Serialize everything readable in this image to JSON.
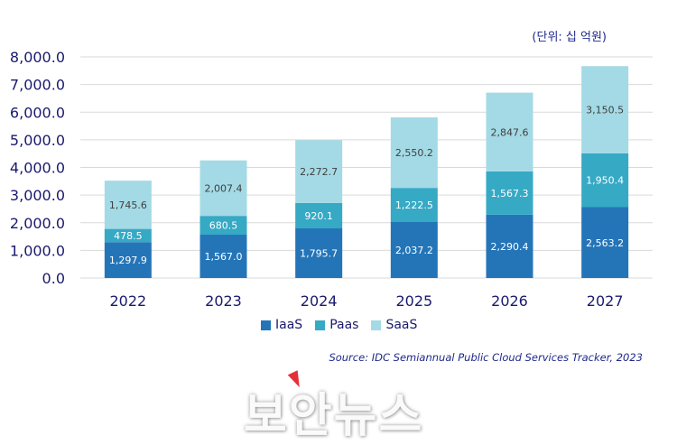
{
  "unit_label": "(단위: 십 억원)",
  "source": "Source: IDC Semiannual Public Cloud Services Tracker, 2023",
  "watermark": "보안뉴스",
  "colors": {
    "IaaS": "#2475b8",
    "PaaS": "#36a9c5",
    "SaaS": "#a3dae5",
    "axis_text": "#1a1a6e",
    "grid": "#d9d9d9"
  },
  "chart_data": {
    "type": "bar",
    "stacked": true,
    "title": "",
    "xlabel": "",
    "ylabel": "",
    "ylim": [
      0,
      8000
    ],
    "yticks": [
      "0.0",
      "1,000.0",
      "2,000.0",
      "3,000.0",
      "4,000.0",
      "5,000.0",
      "6,000.0",
      "7,000.0",
      "8,000.0"
    ],
    "grid": true,
    "legend_position": "bottom",
    "categories": [
      "2022",
      "2023",
      "2024",
      "2025",
      "2026",
      "2027"
    ],
    "series": [
      {
        "name": "IaaS",
        "legend_label": "IaaS",
        "values": [
          1297.9,
          1567.0,
          1795.7,
          2037.2,
          2290.4,
          2563.2
        ],
        "labels": [
          "1,297.9",
          "1,567.0",
          "1,795.7",
          "2,037.2",
          "2,290.4",
          "2,563.2"
        ]
      },
      {
        "name": "PaaS",
        "legend_label": "Paas",
        "values": [
          478.5,
          680.5,
          920.1,
          1222.5,
          1567.3,
          1950.4
        ],
        "labels": [
          "478.5",
          "680.5",
          "920.1",
          "1,222.5",
          "1,567.3",
          "1,950.4"
        ]
      },
      {
        "name": "SaaS",
        "legend_label": "SaaS",
        "values": [
          1745.6,
          2007.4,
          2272.7,
          2550.2,
          2847.6,
          3150.5
        ],
        "labels": [
          "1,745.6",
          "2,007.4",
          "2,272.7",
          "2,550.2",
          "2,847.6",
          "3,150.5"
        ]
      }
    ]
  }
}
